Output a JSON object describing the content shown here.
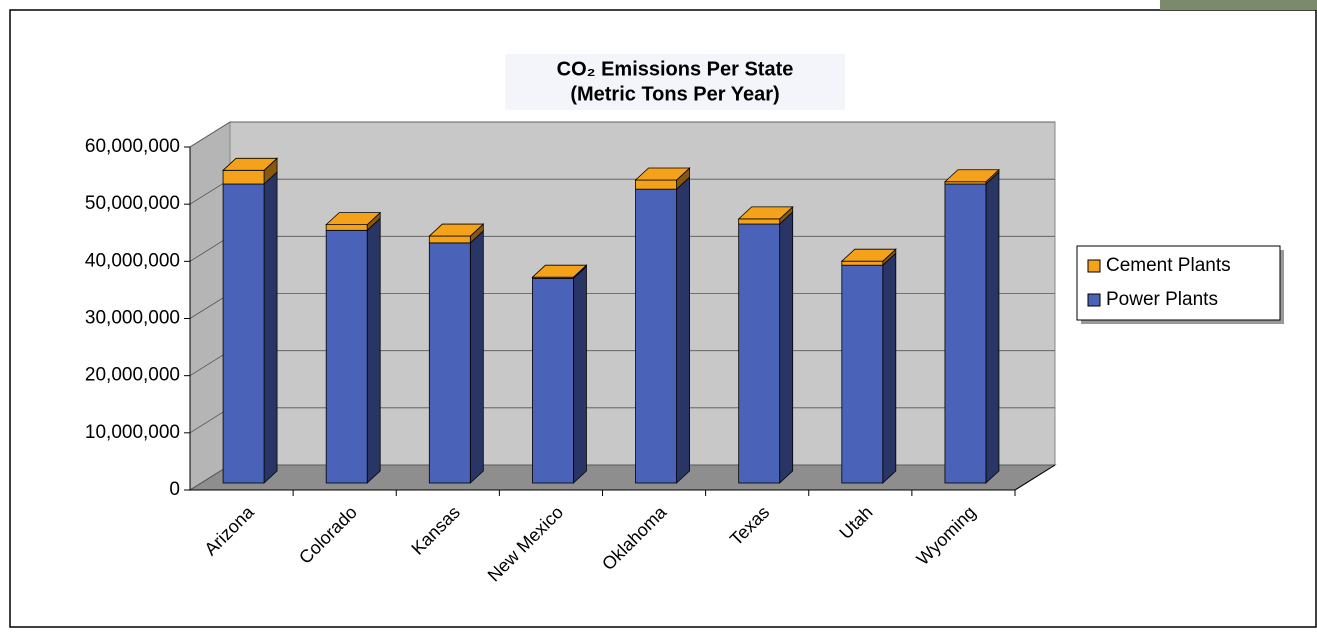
{
  "chart_data": {
    "type": "bar3d_stacked",
    "title": "CO₂ Emissions Per State",
    "subtitle": "(Metric Tons Per Year)",
    "categories": [
      "Arizona",
      "Colorado",
      "Kansas",
      "New Mexico",
      "Oklahoma",
      "Texas",
      "Utah",
      "Wyoming"
    ],
    "series": [
      {
        "name": "Power Plants",
        "color": "#4a62b8",
        "values": [
          52300000,
          44200000,
          42000000,
          35800000,
          51400000,
          45300000,
          38100000,
          52300000
        ]
      },
      {
        "name": "Cement Plants",
        "color": "#f5a21b",
        "values": [
          2400000,
          1000000,
          1200000,
          200000,
          1600000,
          900000,
          700000,
          400000
        ]
      }
    ],
    "ylim": [
      0,
      60000000
    ],
    "yticks": [
      0,
      {
        "value": 10000000,
        "label": "10,000,000"
      },
      {
        "value": 20000000,
        "label": "20,000,000"
      },
      {
        "value": 30000000,
        "label": "30,000,000"
      },
      {
        "value": 40000000,
        "label": "40,000,000"
      },
      {
        "value": 50000000,
        "label": "50,000,000"
      },
      {
        "value": 60000000,
        "label": "60,000,000"
      }
    ],
    "grid": true,
    "legend": "right"
  }
}
